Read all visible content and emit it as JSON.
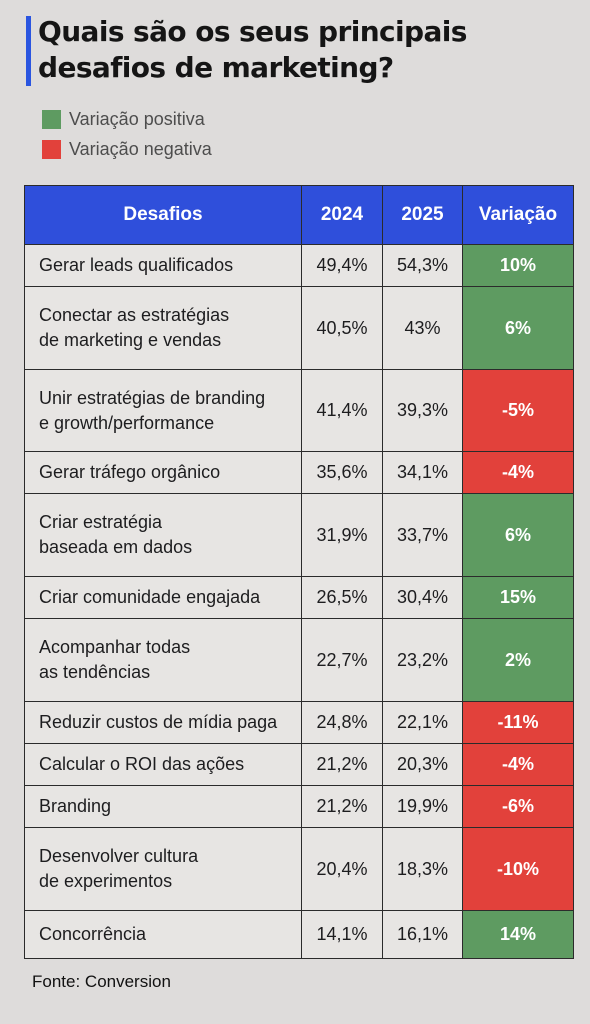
{
  "title": "Quais são os seus principais desafios de marketing?",
  "legend": [
    {
      "label": "Variação positiva",
      "color": "#5e9b61"
    },
    {
      "label": "Variação negativa",
      "color": "#e2413b"
    }
  ],
  "colors": {
    "positive": "#5e9b61",
    "negative": "#e2413b",
    "header": "#2f4fdb",
    "accent_bar": "#2a55e0"
  },
  "chart_data": {
    "type": "table",
    "columns": [
      "Desafios",
      "2024",
      "2025",
      "Variação"
    ],
    "rows": [
      {
        "desafio": "Gerar leads qualificados",
        "y2024": "49,4%",
        "y2025": "54,3%",
        "variacao": "10%",
        "sign": "positive"
      },
      {
        "desafio": "Conectar as estratégias\nde marketing e vendas",
        "y2024": "40,5%",
        "y2025": "43%",
        "variacao": "6%",
        "sign": "positive"
      },
      {
        "desafio": "Unir estratégias de branding\ne growth/performance",
        "y2024": "41,4%",
        "y2025": "39,3%",
        "variacao": "-5%",
        "sign": "negative"
      },
      {
        "desafio": "Gerar tráfego orgânico",
        "y2024": "35,6%",
        "y2025": "34,1%",
        "variacao": "-4%",
        "sign": "negative"
      },
      {
        "desafio": "Criar estratégia\nbaseada em dados",
        "y2024": "31,9%",
        "y2025": "33,7%",
        "variacao": "6%",
        "sign": "positive"
      },
      {
        "desafio": "Criar comunidade engajada",
        "y2024": "26,5%",
        "y2025": "30,4%",
        "variacao": "15%",
        "sign": "positive"
      },
      {
        "desafio": "Acompanhar todas\nas tendências",
        "y2024": "22,7%",
        "y2025": "23,2%",
        "variacao": "2%",
        "sign": "positive"
      },
      {
        "desafio": "Reduzir custos de mídia paga",
        "y2024": "24,8%",
        "y2025": "22,1%",
        "variacao": "-11%",
        "sign": "negative"
      },
      {
        "desafio": "Calcular o ROI das ações",
        "y2024": "21,2%",
        "y2025": "20,3%",
        "variacao": "-4%",
        "sign": "negative"
      },
      {
        "desafio": "Branding",
        "y2024": "21,2%",
        "y2025": "19,9%",
        "variacao": "-6%",
        "sign": "negative"
      },
      {
        "desafio": "Desenvolver cultura\nde experimentos",
        "y2024": "20,4%",
        "y2025": "18,3%",
        "variacao": "-10%",
        "sign": "negative"
      },
      {
        "desafio": "Concorrência",
        "y2024": "14,1%",
        "y2025": "16,1%",
        "variacao": "14%",
        "sign": "positive"
      }
    ]
  },
  "footer": "Fonte: Conversion"
}
